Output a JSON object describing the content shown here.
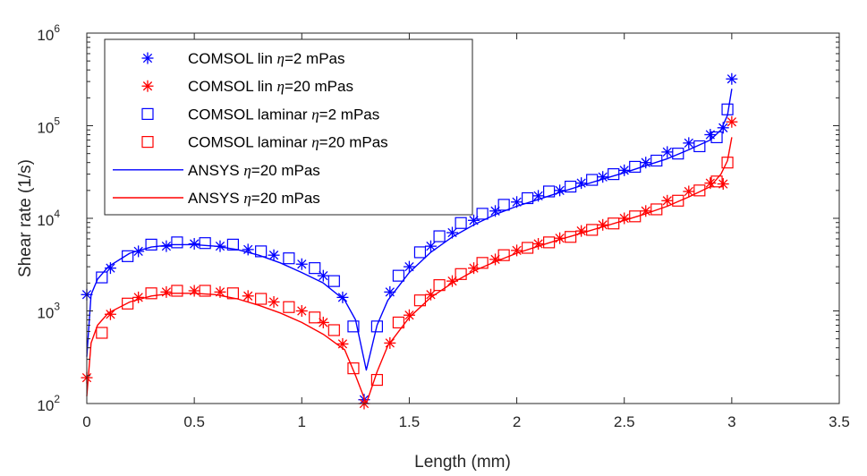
{
  "chart_data": {
    "type": "line",
    "xlabel": "Length (mm)",
    "ylabel": "Shear rate (1/s)",
    "xlim": [
      0,
      3.5
    ],
    "ylim": [
      100,
      1000000
    ],
    "yscale": "log",
    "grid": false,
    "legend_position": "top-left",
    "x_ticks": [
      "0",
      "0.5",
      "1",
      "1.5",
      "2",
      "2.5",
      "3",
      "3.5"
    ],
    "x_tick_values": [
      0,
      0.5,
      1,
      1.5,
      2,
      2.5,
      3,
      3.5
    ],
    "y_ticks": [
      {
        "base": "10",
        "exp": "2",
        "value": 100
      },
      {
        "base": "10",
        "exp": "3",
        "value": 1000
      },
      {
        "base": "10",
        "exp": "4",
        "value": 10000
      },
      {
        "base": "10",
        "exp": "5",
        "value": 100000
      },
      {
        "base": "10",
        "exp": "6",
        "value": 1000000
      }
    ],
    "series": [
      {
        "name": "COMSOL lin η=2 mPas",
        "label_prefix": "COMSOL lin ",
        "label_eta": "η",
        "label_suffix": "=2 mPas",
        "marker": "asterisk",
        "color": "#0000ff",
        "style": "marker",
        "x": [
          0,
          0.11,
          0.24,
          0.37,
          0.5,
          0.62,
          0.75,
          0.87,
          1.0,
          1.1,
          1.19,
          1.29,
          1.41,
          1.5,
          1.6,
          1.7,
          1.8,
          1.9,
          2.0,
          2.1,
          2.2,
          2.3,
          2.4,
          2.5,
          2.6,
          2.7,
          2.8,
          2.9,
          2.96,
          3.0
        ],
        "y": [
          1500,
          2900,
          4400,
          5000,
          5300,
          5000,
          4600,
          4000,
          3200,
          2400,
          1400,
          110,
          1600,
          3000,
          5000,
          7000,
          9500,
          12000,
          15000,
          17500,
          20000,
          24000,
          28000,
          33000,
          40000,
          52000,
          65000,
          80000,
          95000,
          320000
        ]
      },
      {
        "name": "COMSOL lin η=20 mPas",
        "label_prefix": "COMSOL lin ",
        "label_eta": "η",
        "label_suffix": "=20 mPas",
        "marker": "asterisk",
        "color": "#ff0000",
        "style": "marker",
        "x": [
          0,
          0.11,
          0.24,
          0.37,
          0.5,
          0.62,
          0.75,
          0.87,
          1.0,
          1.1,
          1.19,
          1.29,
          1.41,
          1.5,
          1.6,
          1.7,
          1.8,
          1.9,
          2.0,
          2.1,
          2.2,
          2.3,
          2.4,
          2.5,
          2.6,
          2.7,
          2.8,
          2.9,
          2.96,
          3.0
        ],
        "y": [
          190,
          920,
          1400,
          1600,
          1650,
          1600,
          1450,
          1250,
          1000,
          750,
          440,
          100,
          450,
          900,
          1500,
          2100,
          2900,
          3600,
          4500,
          5300,
          6100,
          7300,
          8500,
          10000,
          12000,
          15500,
          19500,
          24000,
          23500,
          110000
        ]
      },
      {
        "name": "COMSOL laminar η=2 mPas",
        "label_prefix": "COMSOL laminar ",
        "label_eta": "η",
        "label_suffix": "=2 mPas",
        "marker": "square",
        "color": "#0000ff",
        "style": "marker",
        "x": [
          0.07,
          0.19,
          0.3,
          0.42,
          0.55,
          0.68,
          0.81,
          0.94,
          1.06,
          1.15,
          1.24,
          1.35,
          1.45,
          1.55,
          1.64,
          1.74,
          1.84,
          1.94,
          2.05,
          2.15,
          2.25,
          2.35,
          2.45,
          2.55,
          2.65,
          2.75,
          2.85,
          2.93,
          2.98
        ],
        "y": [
          2300,
          3900,
          5200,
          5500,
          5400,
          5200,
          4400,
          3700,
          2900,
          2100,
          680,
          680,
          2400,
          4300,
          6400,
          8900,
          11200,
          14000,
          16500,
          19500,
          22000,
          26000,
          30000,
          36000,
          42000,
          50000,
          60000,
          75000,
          150000
        ]
      },
      {
        "name": "COMSOL laminar η=20 mPas",
        "label_prefix": "COMSOL laminar ",
        "label_eta": "η",
        "label_suffix": "=20 mPas",
        "marker": "square",
        "color": "#ff0000",
        "style": "marker",
        "x": [
          0.07,
          0.19,
          0.3,
          0.42,
          0.55,
          0.68,
          0.81,
          0.94,
          1.06,
          1.15,
          1.24,
          1.35,
          1.45,
          1.55,
          1.64,
          1.74,
          1.84,
          1.94,
          2.05,
          2.15,
          2.25,
          2.35,
          2.45,
          2.55,
          2.65,
          2.75,
          2.85,
          2.93,
          2.98
        ],
        "y": [
          580,
          1200,
          1550,
          1650,
          1650,
          1550,
          1350,
          1100,
          850,
          620,
          240,
          180,
          750,
          1300,
          1900,
          2500,
          3300,
          4000,
          4800,
          5500,
          6300,
          7500,
          8800,
          10500,
          12500,
          15500,
          20000,
          25000,
          40000
        ]
      },
      {
        "name": "ANSYS η=20 mPas",
        "label_prefix": "ANSYS ",
        "label_eta": "η",
        "label_suffix": "=20 mPas",
        "marker": "none",
        "color": "#0000ff",
        "style": "line",
        "x": [
          0,
          0.02,
          0.05,
          0.1,
          0.2,
          0.3,
          0.4,
          0.5,
          0.6,
          0.7,
          0.8,
          0.9,
          1.0,
          1.1,
          1.2,
          1.25,
          1.3,
          1.35,
          1.4,
          1.5,
          1.6,
          1.7,
          1.8,
          1.9,
          2.0,
          2.1,
          2.2,
          2.3,
          2.4,
          2.5,
          2.6,
          2.7,
          2.8,
          2.9,
          2.95,
          2.98,
          3.0
        ],
        "y": [
          320,
          1500,
          2200,
          3000,
          4200,
          4900,
          5200,
          5200,
          5000,
          4600,
          4000,
          3300,
          2600,
          2000,
          1300,
          800,
          230,
          700,
          1300,
          2600,
          4300,
          6300,
          8500,
          11000,
          13500,
          16000,
          19000,
          22500,
          26500,
          31000,
          37000,
          44000,
          55000,
          70000,
          90000,
          130000,
          250000
        ]
      },
      {
        "name": "ANSYS  η=20 mPas",
        "label_prefix": "ANSYS  ",
        "label_eta": "η",
        "label_suffix": "=20 mPas",
        "marker": "none",
        "color": "#ff0000",
        "style": "line",
        "x": [
          0,
          0.02,
          0.05,
          0.1,
          0.2,
          0.3,
          0.4,
          0.5,
          0.6,
          0.7,
          0.8,
          0.9,
          1.0,
          1.1,
          1.2,
          1.25,
          1.3,
          1.35,
          1.4,
          1.5,
          1.6,
          1.7,
          1.8,
          1.9,
          2.0,
          2.1,
          2.2,
          2.3,
          2.4,
          2.5,
          2.6,
          2.7,
          2.8,
          2.9,
          2.95,
          2.98,
          3.0
        ],
        "y": [
          120,
          450,
          700,
          950,
          1250,
          1450,
          1550,
          1550,
          1500,
          1350,
          1150,
          950,
          750,
          560,
          380,
          200,
          100,
          220,
          420,
          850,
          1400,
          2000,
          2700,
          3400,
          4200,
          5000,
          5900,
          6900,
          8100,
          9500,
          11200,
          13500,
          17000,
          22000,
          30000,
          42000,
          75000
        ]
      }
    ]
  }
}
